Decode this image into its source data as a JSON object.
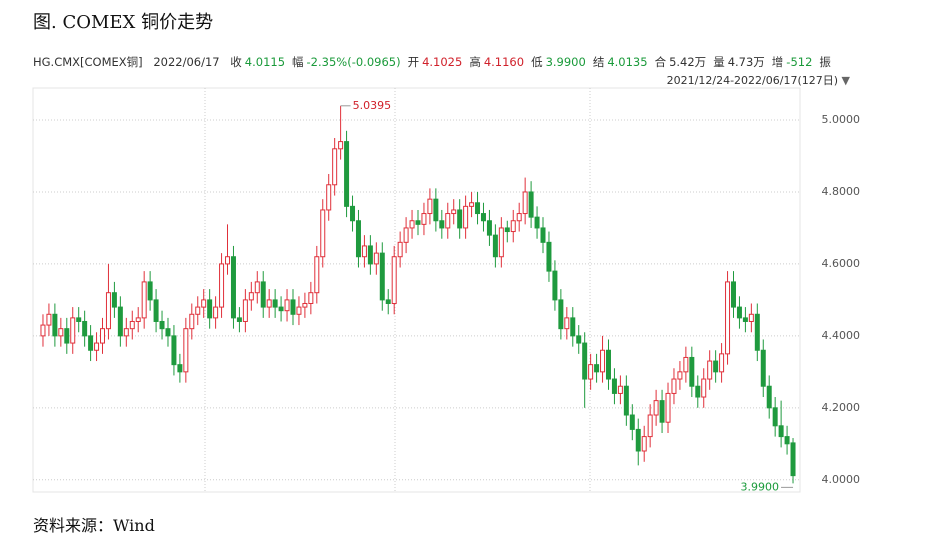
{
  "header": {
    "title": "图. COMEX 铜价走势",
    "symbol": "HG.CMX[COMEX铜]",
    "date": "2022/06/17",
    "items": [
      {
        "label": "收",
        "value": "4.0115",
        "color": "#1a9a3a"
      },
      {
        "label": "幅",
        "value": "-2.35%(-0.0965)",
        "color": "#1a9a3a"
      },
      {
        "label": "开",
        "value": "4.1025",
        "color": "#d0202a"
      },
      {
        "label": "高",
        "value": "4.1160",
        "color": "#d0202a"
      },
      {
        "label": "低",
        "value": "3.9900",
        "color": "#1a9a3a"
      },
      {
        "label": "结",
        "value": "4.0135",
        "color": "#1a9a3a"
      },
      {
        "label": "合",
        "value": "5.42万",
        "color": "#333333"
      },
      {
        "label": "量",
        "value": "4.73万",
        "color": "#333333"
      },
      {
        "label": "增",
        "value": "-512",
        "color": "#1a9a3a"
      },
      {
        "label": "振",
        "value": null,
        "color": "#333333"
      }
    ],
    "range": "2021/12/24-2022/06/17(127日)"
  },
  "chart_data": {
    "type": "candlestick",
    "up_color": "#e0303a",
    "down_color": "#1f9a3e",
    "ylim": [
      3.966,
      5.089
    ],
    "yticks": [
      {
        "value": 4,
        "label": "4.0000"
      },
      {
        "value": 4.2,
        "label": "4.2000"
      },
      {
        "value": 4.4,
        "label": "4.4000"
      },
      {
        "value": 4.6,
        "label": "4.6000"
      },
      {
        "value": 4.8,
        "label": "4.8000"
      },
      {
        "value": 5,
        "label": "5.0000"
      }
    ],
    "grid": true,
    "open": [
      4.4,
      4.43,
      4.46,
      4.4,
      4.42,
      4.38,
      4.45,
      4.44,
      4.4,
      4.36,
      4.38,
      4.42,
      4.52,
      4.48,
      4.4,
      4.42,
      4.44,
      4.45,
      4.55,
      4.5,
      4.44,
      4.42,
      4.4,
      4.32,
      4.3,
      4.42,
      4.46,
      4.48,
      4.5,
      4.45,
      4.48,
      4.6,
      4.62,
      4.45,
      4.44,
      4.5,
      4.52,
      4.55,
      4.48,
      4.5,
      4.48,
      4.47,
      4.5,
      4.46,
      4.48,
      4.49,
      4.52,
      4.62,
      4.75,
      4.82,
      4.92,
      4.94,
      4.76,
      4.72,
      4.62,
      4.65,
      4.6,
      4.63,
      4.5,
      4.49,
      4.62,
      4.66,
      4.7,
      4.72,
      4.71,
      4.74,
      4.78,
      4.72,
      4.7,
      4.74,
      4.75,
      4.7,
      4.76,
      4.77,
      4.74,
      4.72,
      4.68,
      4.62,
      4.7,
      4.69,
      4.72,
      4.74,
      4.8,
      4.73,
      4.7,
      4.66,
      4.58,
      4.5,
      4.42,
      4.45,
      4.4,
      4.38,
      4.28,
      4.32,
      4.3,
      4.36,
      4.28,
      4.24,
      4.26,
      4.18,
      4.14,
      4.08,
      4.12,
      4.18,
      4.22,
      4.16,
      4.24,
      4.28,
      4.3,
      4.34,
      4.26,
      4.23,
      4.28,
      4.33,
      4.3,
      4.35,
      4.55,
      4.48,
      4.45,
      4.44,
      4.46,
      4.36,
      4.26,
      4.2,
      4.15,
      4.12,
      4.1025
    ],
    "high": [
      4.46,
      4.49,
      4.49,
      4.45,
      4.45,
      4.48,
      4.48,
      4.47,
      4.43,
      4.41,
      4.45,
      4.6,
      4.55,
      4.51,
      4.45,
      4.47,
      4.48,
      4.58,
      4.58,
      4.53,
      4.47,
      4.45,
      4.43,
      4.35,
      4.45,
      4.49,
      4.51,
      4.53,
      4.53,
      4.51,
      4.63,
      4.71,
      4.65,
      4.48,
      4.53,
      4.55,
      4.58,
      4.58,
      4.53,
      4.53,
      4.51,
      4.53,
      4.53,
      4.51,
      4.52,
      4.55,
      4.65,
      4.78,
      4.85,
      4.95,
      5.0395,
      4.97,
      4.79,
      4.75,
      4.68,
      4.68,
      4.66,
      4.66,
      4.53,
      4.65,
      4.69,
      4.73,
      4.75,
      4.75,
      4.77,
      4.81,
      4.81,
      4.75,
      4.77,
      4.78,
      4.78,
      4.79,
      4.8,
      4.8,
      4.77,
      4.75,
      4.71,
      4.73,
      4.72,
      4.75,
      4.77,
      4.84,
      4.83,
      4.76,
      4.73,
      4.69,
      4.61,
      4.53,
      4.48,
      4.48,
      4.43,
      4.41,
      4.35,
      4.35,
      4.4,
      4.39,
      4.31,
      4.29,
      4.29,
      4.21,
      4.17,
      4.15,
      4.21,
      4.25,
      4.25,
      4.27,
      4.31,
      4.33,
      4.37,
      4.37,
      4.29,
      4.31,
      4.36,
      4.36,
      4.38,
      4.58,
      4.58,
      4.51,
      4.48,
      4.49,
      4.49,
      4.39,
      4.29,
      4.23,
      4.22,
      4.15,
      4.116
    ],
    "low": [
      4.37,
      4.4,
      4.37,
      4.37,
      4.35,
      4.35,
      4.41,
      4.37,
      4.33,
      4.33,
      4.35,
      4.39,
      4.45,
      4.37,
      4.37,
      4.39,
      4.41,
      4.42,
      4.47,
      4.41,
      4.39,
      4.37,
      4.29,
      4.27,
      4.27,
      4.39,
      4.43,
      4.45,
      4.42,
      4.42,
      4.45,
      4.57,
      4.42,
      4.41,
      4.41,
      4.47,
      4.49,
      4.45,
      4.45,
      4.45,
      4.44,
      4.44,
      4.43,
      4.43,
      4.45,
      4.46,
      4.49,
      4.59,
      4.72,
      4.79,
      4.89,
      4.73,
      4.69,
      4.59,
      4.59,
      4.57,
      4.57,
      4.47,
      4.46,
      4.46,
      4.59,
      4.63,
      4.67,
      4.68,
      4.68,
      4.71,
      4.69,
      4.67,
      4.67,
      4.71,
      4.67,
      4.67,
      4.73,
      4.71,
      4.69,
      4.65,
      4.59,
      4.59,
      4.66,
      4.66,
      4.69,
      4.71,
      4.7,
      4.67,
      4.63,
      4.55,
      4.47,
      4.39,
      4.39,
      4.37,
      4.35,
      4.2,
      4.25,
      4.27,
      4.27,
      4.25,
      4.21,
      4.21,
      4.15,
      4.11,
      4.04,
      4.05,
      4.09,
      4.15,
      4.13,
      4.13,
      4.21,
      4.25,
      4.27,
      4.23,
      4.2,
      4.2,
      4.25,
      4.27,
      4.27,
      4.32,
      4.45,
      4.42,
      4.41,
      4.41,
      4.33,
      4.23,
      4.17,
      4.12,
      4.09,
      4.07,
      3.99
    ],
    "close": [
      4.43,
      4.46,
      4.4,
      4.42,
      4.38,
      4.45,
      4.44,
      4.4,
      4.36,
      4.38,
      4.42,
      4.52,
      4.48,
      4.4,
      4.42,
      4.44,
      4.45,
      4.55,
      4.5,
      4.44,
      4.42,
      4.4,
      4.32,
      4.3,
      4.42,
      4.46,
      4.48,
      4.5,
      4.45,
      4.48,
      4.6,
      4.62,
      4.45,
      4.44,
      4.5,
      4.52,
      4.55,
      4.48,
      4.5,
      4.48,
      4.47,
      4.5,
      4.46,
      4.48,
      4.49,
      4.52,
      4.62,
      4.75,
      4.82,
      4.92,
      4.94,
      4.76,
      4.72,
      4.62,
      4.65,
      4.6,
      4.63,
      4.5,
      4.49,
      4.62,
      4.66,
      4.7,
      4.72,
      4.71,
      4.74,
      4.78,
      4.72,
      4.7,
      4.74,
      4.75,
      4.7,
      4.76,
      4.77,
      4.74,
      4.72,
      4.68,
      4.62,
      4.7,
      4.69,
      4.72,
      4.74,
      4.8,
      4.73,
      4.7,
      4.66,
      4.58,
      4.5,
      4.42,
      4.45,
      4.4,
      4.38,
      4.28,
      4.32,
      4.3,
      4.36,
      4.28,
      4.24,
      4.26,
      4.18,
      4.14,
      4.08,
      4.12,
      4.18,
      4.22,
      4.16,
      4.24,
      4.28,
      4.3,
      4.34,
      4.26,
      4.23,
      4.28,
      4.33,
      4.3,
      4.35,
      4.55,
      4.48,
      4.45,
      4.44,
      4.46,
      4.36,
      4.26,
      4.2,
      4.15,
      4.12,
      4.1,
      4.0115
    ],
    "annotations": [
      {
        "value": 5.0395,
        "label": "5.0395",
        "color": "#d0202a"
      },
      {
        "value": 3.99,
        "label": "3.9900",
        "color": "#1a9a3a"
      }
    ]
  },
  "source": "资料来源：Wind"
}
